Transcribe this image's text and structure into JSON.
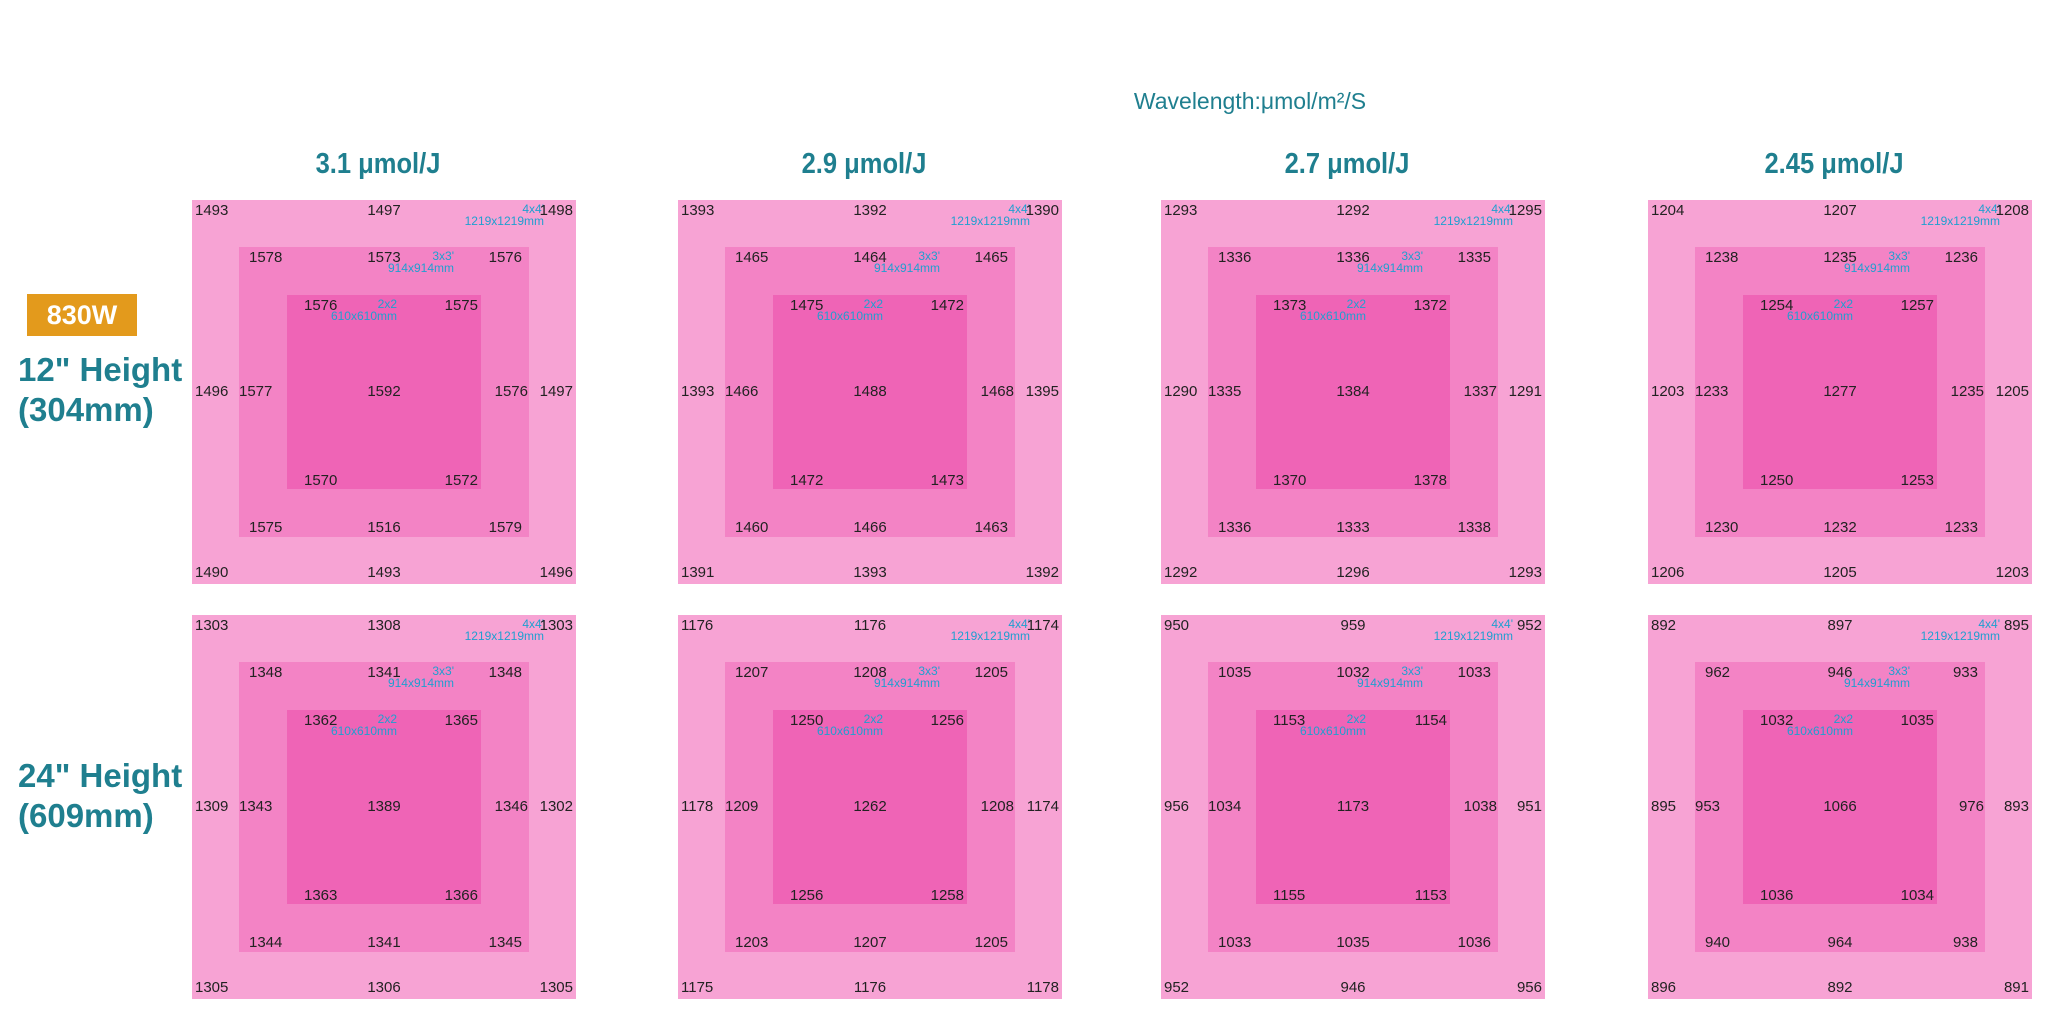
{
  "wavelength_label": "Wavelength:μmol/m²/S",
  "power_badge": "830W",
  "rows": [
    {
      "line1": "12\" Height",
      "line2": "(304mm)"
    },
    {
      "line1": "24\" Height",
      "line2": "(609mm)"
    }
  ],
  "columns": [
    "3.1 μmol/J",
    "2.9 μmol/J",
    "2.7 μmol/J",
    "2.45 μmol/J"
  ],
  "zone_labels": {
    "outer": {
      "size": "4x4'",
      "mm": "1219x1219mm"
    },
    "mid": {
      "size": "3x3'",
      "mm": "914x914mm"
    },
    "inner": {
      "size": "2x2",
      "mm": "610x610mm"
    }
  },
  "colors": {
    "outer": "#f7a3d4",
    "mid": "#f383c5",
    "inner": "#ef64b6",
    "title": "#1f7f8f",
    "badge": "#e39a1c",
    "dim": "#1f9fd0"
  },
  "grid": [
    [
      {
        "o_tl": "1493",
        "o_tm": "1497",
        "o_tr": "1498",
        "m_tl": "1578",
        "m_tm": "1573",
        "m_tr": "1576",
        "i_tl": "1576",
        "i_tr": "1575",
        "o_ml": "1496",
        "m_ml": "1577",
        "center": "1592",
        "m_mr": "1576",
        "o_mr": "1497",
        "i_bl": "1570",
        "i_br": "1572",
        "m_bl": "1575",
        "m_bm": "1516",
        "m_br": "1579",
        "o_bl": "1490",
        "o_bm": "1493",
        "o_br": "1496"
      },
      {
        "o_tl": "1393",
        "o_tm": "1392",
        "o_tr": "1390",
        "m_tl": "1465",
        "m_tm": "1464",
        "m_tr": "1465",
        "i_tl": "1475",
        "i_tr": "1472",
        "o_ml": "1393",
        "m_ml": "1466",
        "center": "1488",
        "m_mr": "1468",
        "o_mr": "1395",
        "i_bl": "1472",
        "i_br": "1473",
        "m_bl": "1460",
        "m_bm": "1466",
        "m_br": "1463",
        "o_bl": "1391",
        "o_bm": "1393",
        "o_br": "1392"
      },
      {
        "o_tl": "1293",
        "o_tm": "1292",
        "o_tr": "1295",
        "m_tl": "1336",
        "m_tm": "1336",
        "m_tr": "1335",
        "i_tl": "1373",
        "i_tr": "1372",
        "o_ml": "1290",
        "m_ml": "1335",
        "center": "1384",
        "m_mr": "1337",
        "o_mr": "1291",
        "i_bl": "1370",
        "i_br": "1378",
        "m_bl": "1336",
        "m_bm": "1333",
        "m_br": "1338",
        "o_bl": "1292",
        "o_bm": "1296",
        "o_br": "1293"
      },
      {
        "o_tl": "1204",
        "o_tm": "1207",
        "o_tr": "1208",
        "m_tl": "1238",
        "m_tm": "1235",
        "m_tr": "1236",
        "i_tl": "1254",
        "i_tr": "1257",
        "o_ml": "1203",
        "m_ml": "1233",
        "center": "1277",
        "m_mr": "1235",
        "o_mr": "1205",
        "i_bl": "1250",
        "i_br": "1253",
        "m_bl": "1230",
        "m_bm": "1232",
        "m_br": "1233",
        "o_bl": "1206",
        "o_bm": "1205",
        "o_br": "1203"
      }
    ],
    [
      {
        "o_tl": "1303",
        "o_tm": "1308",
        "o_tr": "1303",
        "m_tl": "1348",
        "m_tm": "1341",
        "m_tr": "1348",
        "i_tl": "1362",
        "i_tr": "1365",
        "o_ml": "1309",
        "m_ml": "1343",
        "center": "1389",
        "m_mr": "1346",
        "o_mr": "1302",
        "i_bl": "1363",
        "i_br": "1366",
        "m_bl": "1344",
        "m_bm": "1341",
        "m_br": "1345",
        "o_bl": "1305",
        "o_bm": "1306",
        "o_br": "1305"
      },
      {
        "o_tl": "1176",
        "o_tm": "1176",
        "o_tr": "1174",
        "m_tl": "1207",
        "m_tm": "1208",
        "m_tr": "1205",
        "i_tl": "1250",
        "i_tr": "1256",
        "o_ml": "1178",
        "m_ml": "1209",
        "center": "1262",
        "m_mr": "1208",
        "o_mr": "1174",
        "i_bl": "1256",
        "i_br": "1258",
        "m_bl": "1203",
        "m_bm": "1207",
        "m_br": "1205",
        "o_bl": "1175",
        "o_bm": "1176",
        "o_br": "1178"
      },
      {
        "o_tl": "950",
        "o_tm": "959",
        "o_tr": "952",
        "m_tl": "1035",
        "m_tm": "1032",
        "m_tr": "1033",
        "i_tl": "1153",
        "i_tr": "1154",
        "o_ml": "956",
        "m_ml": "1034",
        "center": "1173",
        "m_mr": "1038",
        "o_mr": "951",
        "i_bl": "1155",
        "i_br": "1153",
        "m_bl": "1033",
        "m_bm": "1035",
        "m_br": "1036",
        "o_bl": "952",
        "o_bm": "946",
        "o_br": "956"
      },
      {
        "o_tl": "892",
        "o_tm": "897",
        "o_tr": "895",
        "m_tl": "962",
        "m_tm": "946",
        "m_tr": "933",
        "i_tl": "1032",
        "i_tr": "1035",
        "o_ml": "895",
        "m_ml": "953",
        "center": "1066",
        "m_mr": "976",
        "o_mr": "893",
        "i_bl": "1036",
        "i_br": "1034",
        "m_bl": "940",
        "m_bm": "964",
        "m_br": "938",
        "o_bl": "896",
        "o_bm": "892",
        "o_br": "891"
      }
    ]
  ]
}
